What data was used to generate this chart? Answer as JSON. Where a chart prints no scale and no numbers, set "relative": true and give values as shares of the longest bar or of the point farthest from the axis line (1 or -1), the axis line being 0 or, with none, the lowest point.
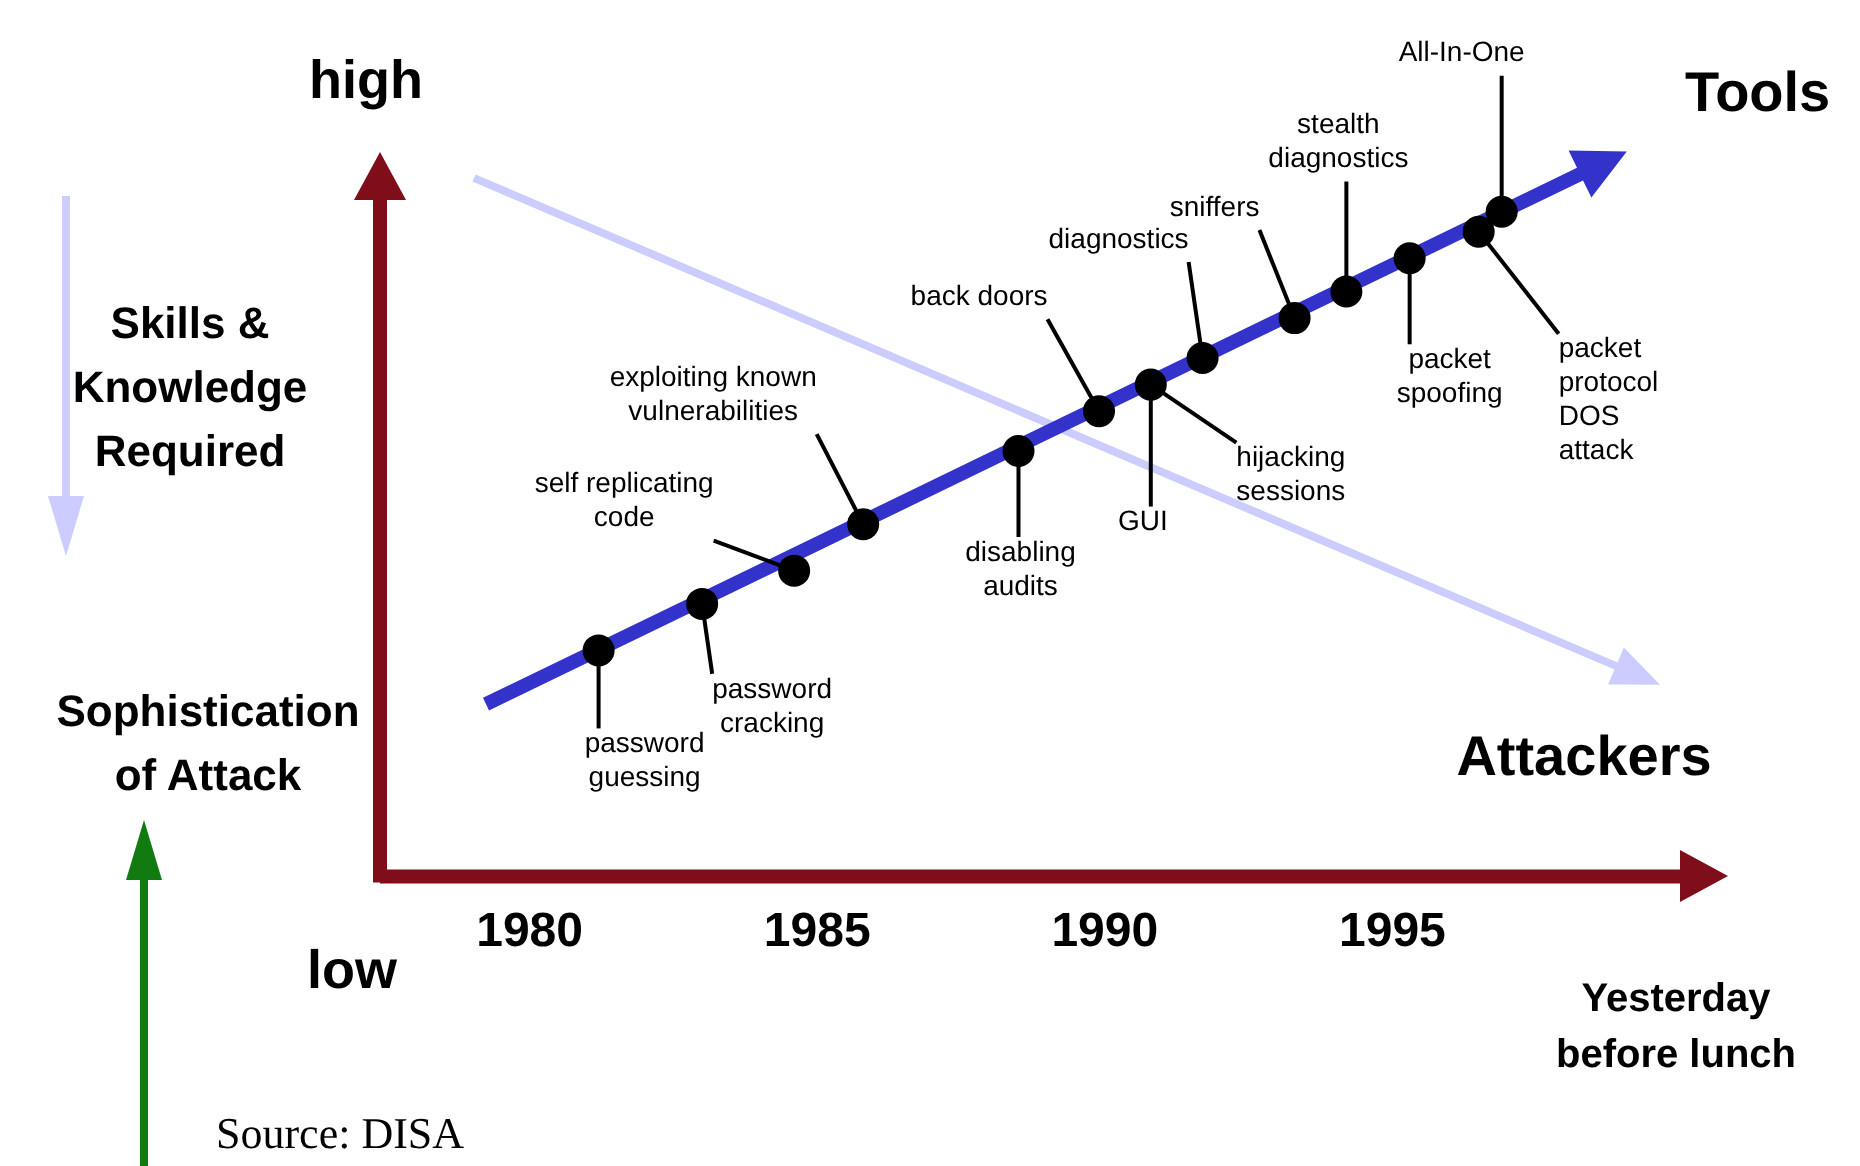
{
  "chart_data": {
    "type": "scatter",
    "relative": true,
    "xlabel": "Yesterday\nbefore lunch",
    "ylabel": "Sophistication\nof Attack",
    "xlim": [
      1977.4,
      2000
    ],
    "xticks": [
      1980,
      1985,
      1990,
      1995
    ],
    "grid": false,
    "marker": "circle",
    "series": [
      {
        "name": "Tools",
        "color": "#000000",
        "x": [
          1981.2,
          1983.0,
          1984.6,
          1985.8,
          1988.5,
          1989.9,
          1990.8,
          1991.7,
          1993.3,
          1994.2,
          1995.3,
          1996.5,
          1996.9
        ],
        "values": [
          0.34,
          0.41,
          0.46,
          0.53,
          0.64,
          0.7,
          0.74,
          0.78,
          0.84,
          0.88,
          0.93,
          0.97,
          1
        ]
      }
    ],
    "annotations": [
      {
        "text": "password\nguessing",
        "x": 1981.2,
        "y": 0.34
      },
      {
        "text": "password\ncracking",
        "x": 1983.0,
        "y": 0.41
      },
      {
        "text": "self replicating\ncode",
        "x": 1984.6,
        "y": 0.46
      },
      {
        "text": "exploiting known\nvulnerabilities",
        "x": 1985.8,
        "y": 0.53
      },
      {
        "text": "disabling\naudits",
        "x": 1988.5,
        "y": 0.64
      },
      {
        "text": "back doors",
        "x": 1989.9,
        "y": 0.7
      },
      {
        "text": "GUI",
        "x": 1990.8,
        "y": 0.74
      },
      {
        "text": "hijacking\nsessions",
        "x": 1990.8,
        "y": 0.74
      },
      {
        "text": "diagnostics",
        "x": 1991.7,
        "y": 0.78
      },
      {
        "text": "sniffers",
        "x": 1993.3,
        "y": 0.84
      },
      {
        "text": "stealth\ndiagnostics",
        "x": 1994.2,
        "y": 0.88
      },
      {
        "text": "packet\nspoofing",
        "x": 1995.3,
        "y": 0.93
      },
      {
        "text": "packet\nprotocol\nDOS\nattack",
        "x": 1996.5,
        "y": 0.97
      },
      {
        "text": "All-In-One",
        "x": 1996.9,
        "y": 1
      },
      "high",
      "low",
      "Skills &\nKnowledge\nRequired",
      "Source: DISA",
      "Attackers"
    ]
  }
}
